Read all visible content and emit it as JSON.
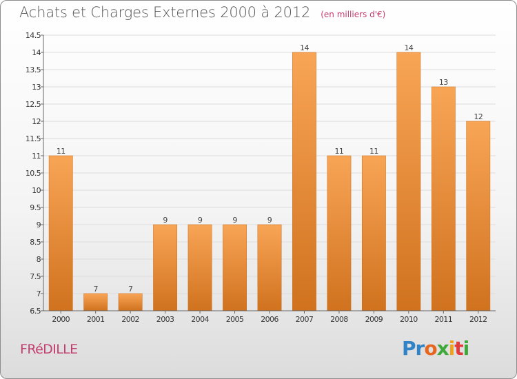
{
  "header": {
    "title": "Achats et Charges Externes 2000 à 2012",
    "unit": "(en milliers d'€)"
  },
  "footer": {
    "commune": "FRéDILLE",
    "logo": {
      "letters": [
        "P",
        "r",
        "o",
        "x",
        "i",
        "t",
        "i"
      ],
      "colors": [
        "#2f83c6",
        "#2f83c6",
        "#e8651e",
        "#3ea83a",
        "#f0a21a",
        "#e33a3a",
        "#3ea83a"
      ]
    }
  },
  "colors": {
    "bar_light": "#f8a556",
    "bar_dark": "#d0721e",
    "grid": "#dcdcdc",
    "axis": "#666666"
  },
  "chart_data": {
    "type": "bar",
    "title": "Achats et Charges Externes 2000 à 2012",
    "subtitle": "(en milliers d'€)",
    "categories": [
      "2000",
      "2001",
      "2002",
      "2003",
      "2004",
      "2005",
      "2006",
      "2007",
      "2008",
      "2009",
      "2010",
      "2011",
      "2012"
    ],
    "values": [
      11,
      7,
      7,
      9,
      9,
      9,
      9,
      14,
      11,
      11,
      14,
      13,
      12
    ],
    "data_labels": [
      "11",
      "7",
      "7",
      "9",
      "9",
      "9",
      "9",
      "14",
      "11",
      "11",
      "14",
      "13",
      "12"
    ],
    "ylim": [
      6.5,
      14.5
    ],
    "yticks": [
      "6.5",
      "7",
      "7.5",
      "8",
      "8.5",
      "9",
      "9.5",
      "10",
      "10.5",
      "11",
      "11.5",
      "12",
      "12.5",
      "13",
      "13.5",
      "14",
      "14.5"
    ],
    "grid": true,
    "legend": false
  }
}
